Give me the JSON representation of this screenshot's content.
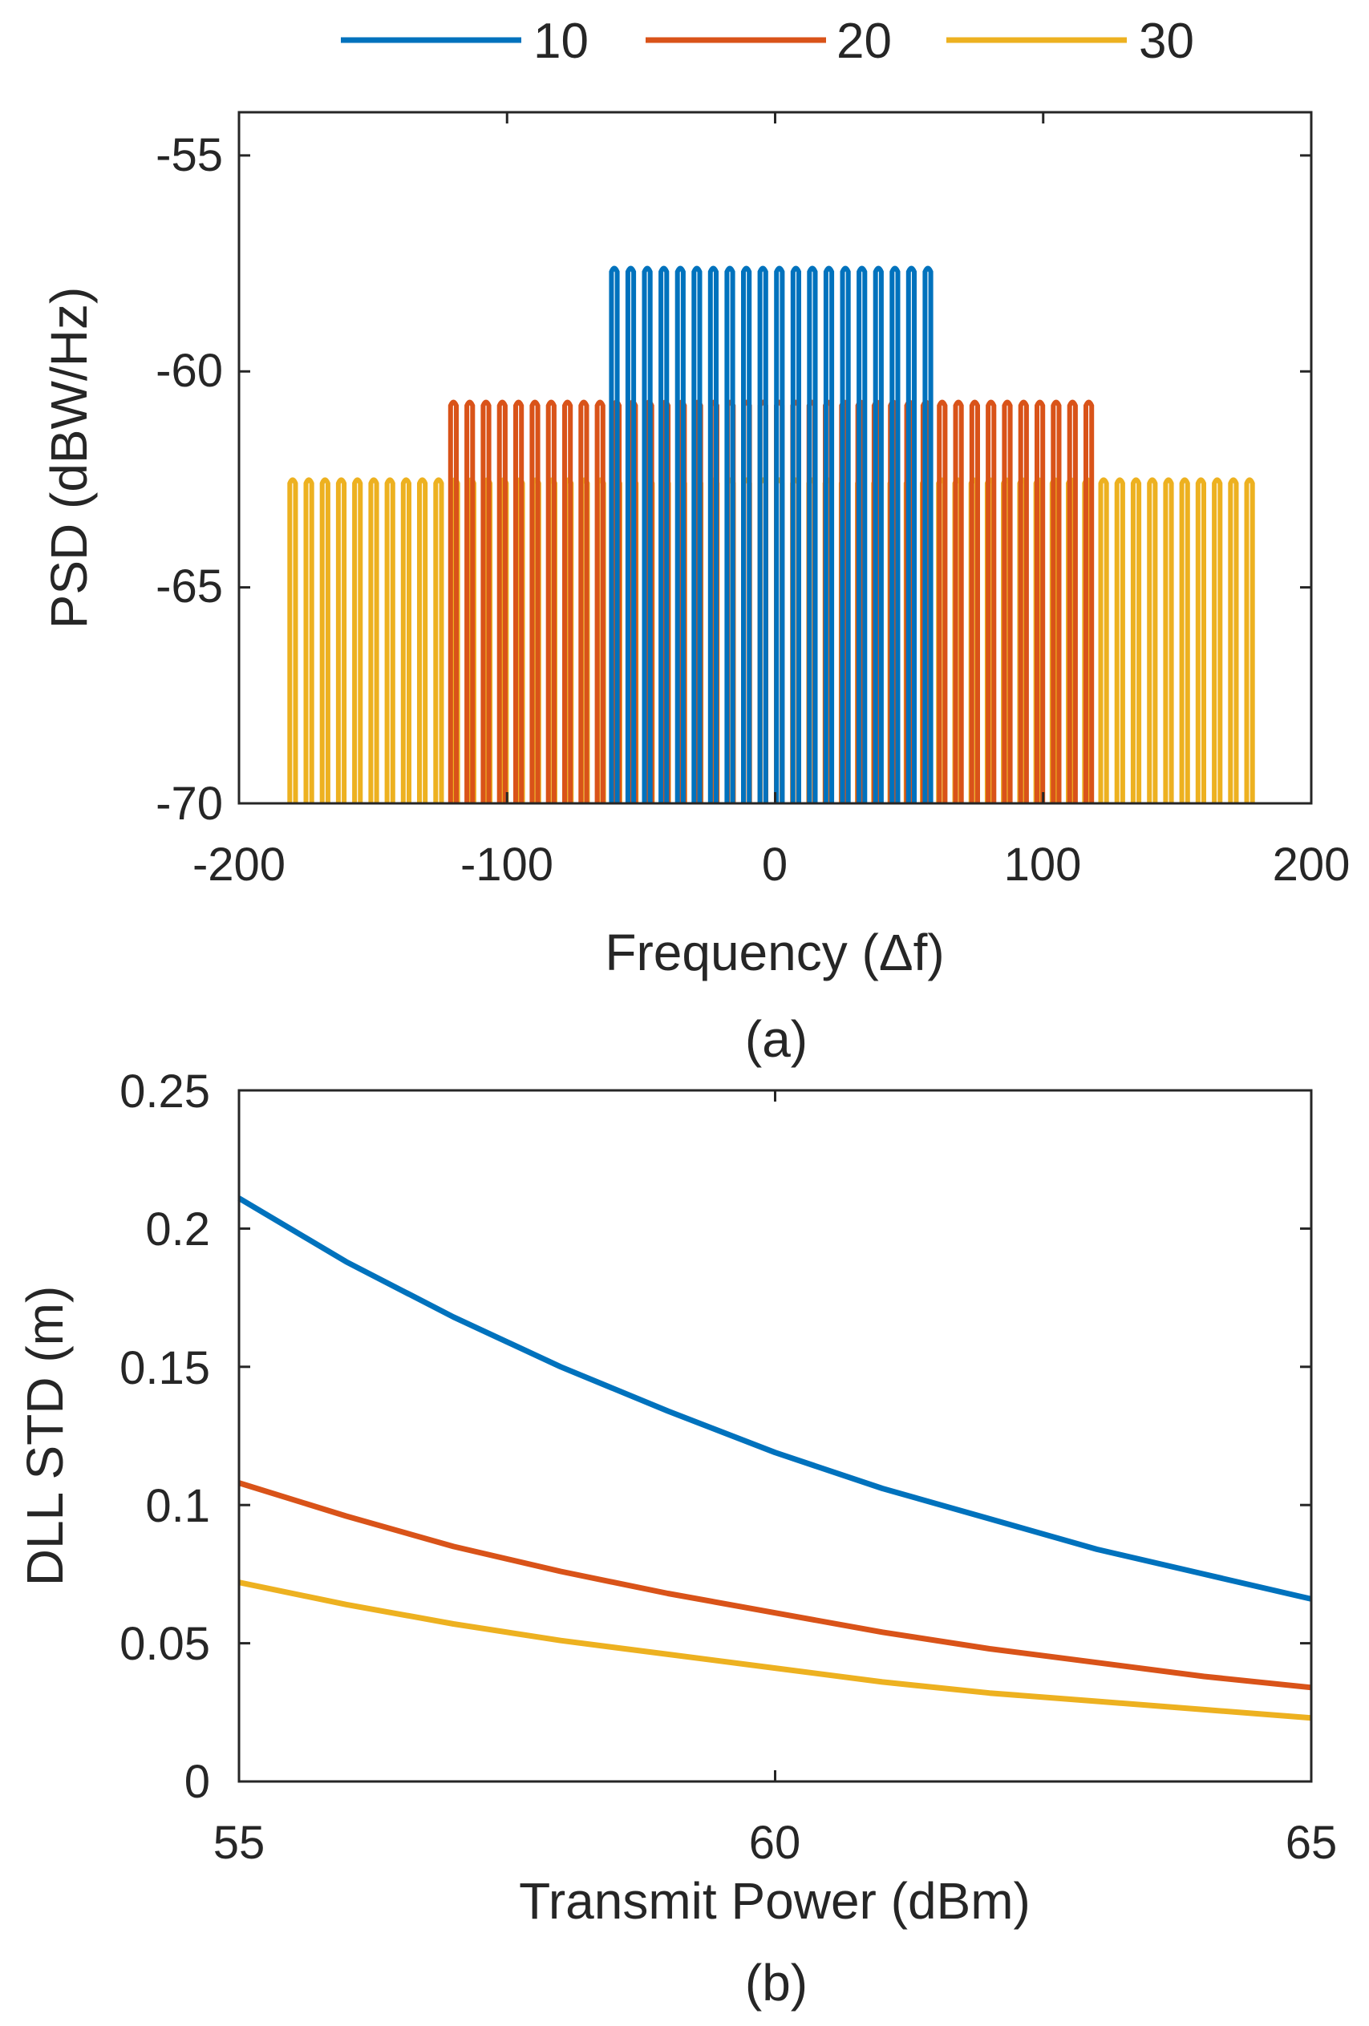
{
  "colors": {
    "series_10": "#0072BD",
    "series_20": "#D95319",
    "series_30": "#EDB120",
    "axis": "#262626",
    "background": "#ffffff"
  },
  "legend": {
    "placement": "top-center",
    "entries": [
      {
        "label": "10",
        "color": "#0072BD"
      },
      {
        "label": "20",
        "color": "#D95319"
      },
      {
        "label": "30",
        "color": "#EDB120"
      }
    ]
  },
  "chart_data": [
    {
      "type": "line",
      "panel_label": "(a)",
      "xlabel": "Frequency (Δf)",
      "ylabel": "PSD (dBW/Hz)",
      "xlim": [
        -200,
        200
      ],
      "ylim": [
        -70,
        -54
      ],
      "xticks": [
        -200,
        -100,
        0,
        100,
        200
      ],
      "yticks": [
        -70,
        -65,
        -60,
        -55
      ],
      "xtick_labels": [
        "-200",
        "-100",
        "0",
        "100",
        "200"
      ],
      "ytick_labels": [
        "-70",
        "-65",
        "-60",
        "-55"
      ],
      "grid": false,
      "series": [
        {
          "name": "10",
          "color": "#0072BD",
          "subcarriers": 20,
          "x_range": [
            -60,
            57
          ],
          "peak": -57.6,
          "trough": -68.4
        },
        {
          "name": "20",
          "color": "#D95319",
          "subcarriers": 40,
          "x_range": [
            -120,
            117
          ],
          "peak": -60.7
        },
        {
          "name": "30",
          "color": "#EDB120",
          "subcarriers": 60,
          "x_range": [
            -180,
            177
          ],
          "peak": -62.5
        }
      ]
    },
    {
      "type": "line",
      "panel_label": "(b)",
      "xlabel": "Transmit Power (dBm)",
      "ylabel": "DLL STD (m)",
      "xlim": [
        55,
        65
      ],
      "ylim": [
        0,
        0.25
      ],
      "xticks": [
        55,
        60,
        65
      ],
      "yticks": [
        0,
        0.05,
        0.1,
        0.15,
        0.2,
        0.25
      ],
      "xtick_labels": [
        "55",
        "60",
        "65"
      ],
      "ytick_labels": [
        "0",
        "0.05",
        "0.1",
        "0.15",
        "0.2",
        "0.25"
      ],
      "grid": false,
      "x": [
        55,
        56,
        57,
        58,
        59,
        60,
        61,
        62,
        63,
        64,
        65
      ],
      "series": [
        {
          "name": "10",
          "color": "#0072BD",
          "values": [
            0.211,
            0.188,
            0.168,
            0.15,
            0.134,
            0.119,
            0.106,
            0.095,
            0.084,
            0.075,
            0.066
          ]
        },
        {
          "name": "20",
          "color": "#D95319",
          "values": [
            0.108,
            0.096,
            0.085,
            0.076,
            0.068,
            0.061,
            0.054,
            0.048,
            0.043,
            0.038,
            0.034
          ]
        },
        {
          "name": "30",
          "color": "#EDB120",
          "values": [
            0.072,
            0.064,
            0.057,
            0.051,
            0.046,
            0.041,
            0.036,
            0.032,
            0.029,
            0.026,
            0.023
          ]
        }
      ]
    }
  ]
}
